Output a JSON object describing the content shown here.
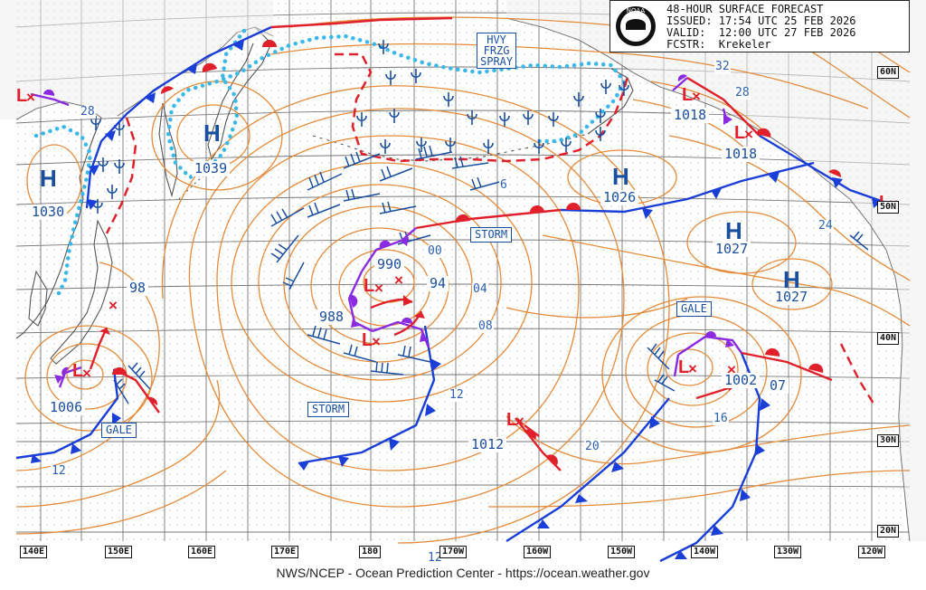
{
  "header": {
    "title": "48-HOUR SURFACE FORECAST",
    "issued": "ISSUED: 17:54 UTC 25 FEB 2026",
    "valid": "VALID:  12:00 UTC 27 FEB 2026",
    "forecaster": "FCSTR:  Krekeler",
    "logo_text": "NOAA"
  },
  "footer": "NWS/NCEP - Ocean Prediction Center - https://ocean.weather.gov",
  "longitude_ticks": [
    "140E",
    "150E",
    "160E",
    "170E",
    "180",
    "170W",
    "160W",
    "150W",
    "140W",
    "130W",
    "120W"
  ],
  "latitude_ticks": [
    "60N",
    "50N",
    "40N",
    "30N",
    "20N"
  ],
  "high_label": "H",
  "low_label": "L",
  "x_label": "×",
  "highs": [
    {
      "id": "h-1039",
      "pressure": "1039"
    },
    {
      "id": "h-1030",
      "pressure": "1030"
    },
    {
      "id": "h-1026",
      "pressure": "1026"
    },
    {
      "id": "h-1027a",
      "pressure": "1027"
    },
    {
      "id": "h-1027b",
      "pressure": "1027"
    }
  ],
  "lows": [
    {
      "id": "l-990",
      "pressure": "990"
    },
    {
      "id": "l-988",
      "pressure": "988"
    },
    {
      "id": "l-1006",
      "pressure": "1006"
    },
    {
      "id": "l-1002",
      "pressure": "1002"
    },
    {
      "id": "l-1012",
      "pressure": "1012"
    },
    {
      "id": "l-1018a",
      "pressure": "1018"
    },
    {
      "id": "l-1018b",
      "pressure": "1018"
    }
  ],
  "pressure_other": [
    "94",
    "98",
    "07"
  ],
  "isobar_labels": [
    "28",
    "32",
    "28",
    "24",
    "00",
    "04",
    "08",
    "12",
    "16",
    "20",
    "12",
    "12",
    "6"
  ],
  "warning_boxes": [
    "STORM",
    "STORM",
    "GALE",
    "GALE"
  ],
  "hvy_frzg_spray": [
    "HVY",
    "FRZG",
    "SPRAY"
  ],
  "colors": {
    "isobar": "#e58a3a",
    "cold_front": "#1a3fd8",
    "warm_front": "#e0202a",
    "occluded": "#8a2be2",
    "ice_edge": "#3ab8e8",
    "freezing_spray": "#e0202a",
    "land": "#6d6d6d",
    "grid": "#777777",
    "labels": "#1a4fa0"
  }
}
